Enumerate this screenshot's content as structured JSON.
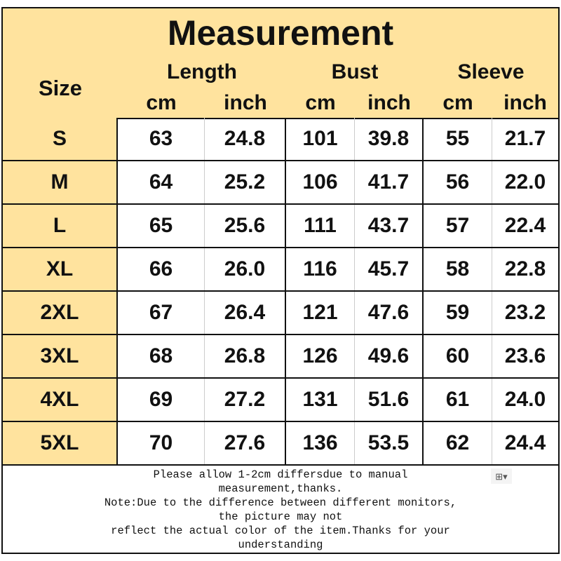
{
  "title": "Measurement",
  "size_label": "Size",
  "groups": [
    "Length",
    "Bust",
    "Sleeve"
  ],
  "units": [
    "cm",
    "inch",
    "cm",
    "inch",
    "cm",
    "inch"
  ],
  "rows": [
    {
      "size": "S",
      "v": [
        "63",
        "24.8",
        "101",
        "39.8",
        "55",
        "21.7"
      ]
    },
    {
      "size": "M",
      "v": [
        "64",
        "25.2",
        "106",
        "41.7",
        "56",
        "22.0"
      ]
    },
    {
      "size": "L",
      "v": [
        "65",
        "25.6",
        "111",
        "43.7",
        "57",
        "22.4"
      ]
    },
    {
      "size": "XL",
      "v": [
        "66",
        "26.0",
        "116",
        "45.7",
        "58",
        "22.8"
      ]
    },
    {
      "size": "2XL",
      "v": [
        "67",
        "26.4",
        "121",
        "47.6",
        "59",
        "23.2"
      ]
    },
    {
      "size": "3XL",
      "v": [
        "68",
        "26.8",
        "126",
        "49.6",
        "60",
        "23.6"
      ]
    },
    {
      "size": "4XL",
      "v": [
        "69",
        "27.2",
        "131",
        "51.6",
        "61",
        "24.0"
      ]
    },
    {
      "size": "5XL",
      "v": [
        "70",
        "27.6",
        "136",
        "53.5",
        "62",
        "24.4"
      ]
    }
  ],
  "note": [
    "Please allow 1-2cm differsdue to manual",
    "measurement,thanks.",
    "Note:Due to the difference between different monitors,",
    "the picture may not",
    "reflect the actual color of the item.Thanks for your",
    "understanding"
  ],
  "colors": {
    "header_bg": "#FFE39E",
    "border": "#111111"
  },
  "paste_icon": "paste-options-icon"
}
